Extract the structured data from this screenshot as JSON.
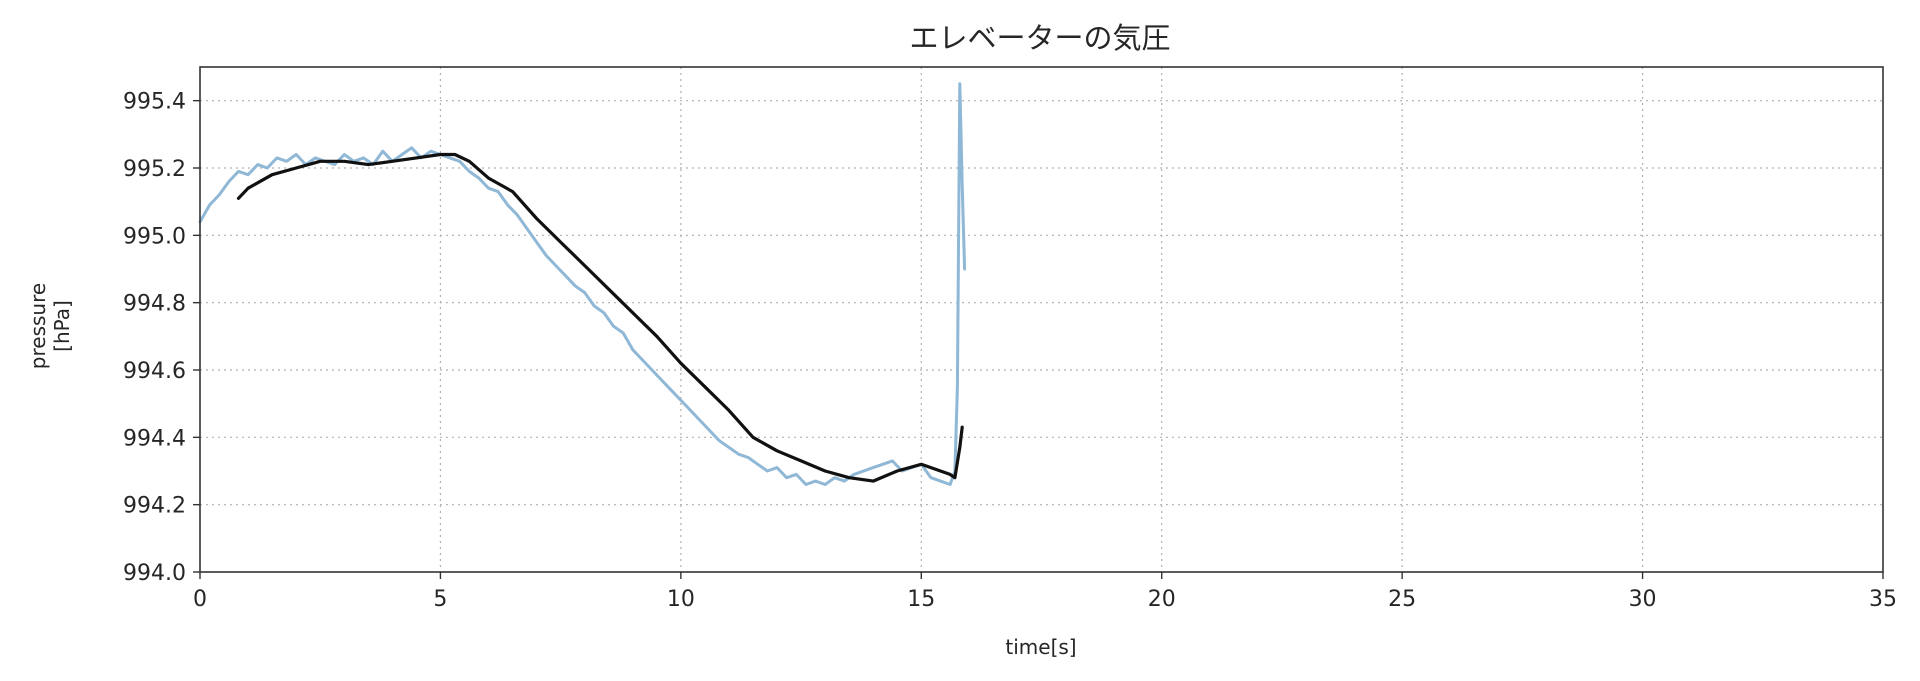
{
  "chart_data": {
    "type": "line",
    "title": "エレベーターの気圧",
    "xlabel": "time[s]",
    "ylabel_lines": [
      "pressure",
      "[hPa]"
    ],
    "xlim": [
      0,
      35
    ],
    "ylim": [
      994.0,
      995.5
    ],
    "xticks": [
      0,
      5,
      10,
      15,
      20,
      25,
      30,
      35
    ],
    "yticks": [
      994.0,
      994.2,
      994.4,
      994.6,
      994.8,
      995.0,
      995.2,
      995.4
    ],
    "ytick_labels": [
      "994.0",
      "994.2",
      "994.4",
      "994.6",
      "994.8",
      "995.0",
      "995.2",
      "995.4"
    ],
    "grid": true,
    "series": [
      {
        "name": "",
        "color": "#8fb7d6",
        "x": [
          0.0,
          0.2,
          0.4,
          0.6,
          0.8,
          1.0,
          1.2,
          1.4,
          1.6,
          1.8,
          2.0,
          2.2,
          2.4,
          2.6,
          2.8,
          3.0,
          3.2,
          3.4,
          3.6,
          3.8,
          4.0,
          4.2,
          4.4,
          4.6,
          4.8,
          5.0,
          5.2,
          5.4,
          5.6,
          5.8,
          6.0,
          6.2,
          6.4,
          6.6,
          6.8,
          7.0,
          7.2,
          7.4,
          7.6,
          7.8,
          8.0,
          8.2,
          8.4,
          8.6,
          8.8,
          9.0,
          9.2,
          9.4,
          9.6,
          9.8,
          10.0,
          10.2,
          10.4,
          10.6,
          10.8,
          11.0,
          11.2,
          11.4,
          11.6,
          11.8,
          12.0,
          12.2,
          12.4,
          12.6,
          12.8,
          13.0,
          13.2,
          13.4,
          13.6,
          13.8,
          14.0,
          14.2,
          14.4,
          14.6,
          14.8,
          15.0,
          15.2,
          15.4,
          15.6,
          15.7,
          15.75,
          15.8,
          15.85,
          15.9
        ],
        "y": [
          995.04,
          995.09,
          995.12,
          995.16,
          995.19,
          995.18,
          995.21,
          995.2,
          995.23,
          995.22,
          995.24,
          995.21,
          995.23,
          995.22,
          995.21,
          995.24,
          995.22,
          995.23,
          995.21,
          995.25,
          995.22,
          995.24,
          995.26,
          995.23,
          995.25,
          995.24,
          995.23,
          995.22,
          995.19,
          995.17,
          995.14,
          995.13,
          995.09,
          995.06,
          995.02,
          994.98,
          994.94,
          994.91,
          994.88,
          994.85,
          994.83,
          994.79,
          994.77,
          994.73,
          994.71,
          994.66,
          994.63,
          994.6,
          994.57,
          994.54,
          994.51,
          994.48,
          994.45,
          994.42,
          994.39,
          994.37,
          994.35,
          994.34,
          994.32,
          994.3,
          994.31,
          994.28,
          994.29,
          994.26,
          994.27,
          994.26,
          994.28,
          994.27,
          994.29,
          994.3,
          994.31,
          994.32,
          994.33,
          994.3,
          994.31,
          994.32,
          994.28,
          994.27,
          994.26,
          994.3,
          994.55,
          995.45,
          995.15,
          994.9
        ]
      },
      {
        "name": "",
        "color": "#111111",
        "x": [
          0.8,
          1.0,
          1.5,
          2.0,
          2.5,
          3.0,
          3.5,
          4.0,
          4.5,
          5.0,
          5.3,
          5.6,
          6.0,
          6.5,
          7.0,
          7.5,
          8.0,
          8.5,
          9.0,
          9.5,
          10.0,
          10.5,
          11.0,
          11.5,
          12.0,
          12.5,
          13.0,
          13.5,
          14.0,
          14.5,
          15.0,
          15.4,
          15.6,
          15.7,
          15.8,
          15.85
        ],
        "y": [
          995.11,
          995.14,
          995.18,
          995.2,
          995.22,
          995.22,
          995.21,
          995.22,
          995.23,
          995.24,
          995.24,
          995.22,
          995.17,
          995.13,
          995.05,
          994.98,
          994.91,
          994.84,
          994.77,
          994.7,
          994.62,
          994.55,
          994.48,
          994.4,
          994.36,
          994.33,
          994.3,
          994.28,
          994.27,
          994.3,
          994.32,
          994.3,
          994.29,
          994.28,
          994.37,
          994.43
        ]
      }
    ]
  }
}
